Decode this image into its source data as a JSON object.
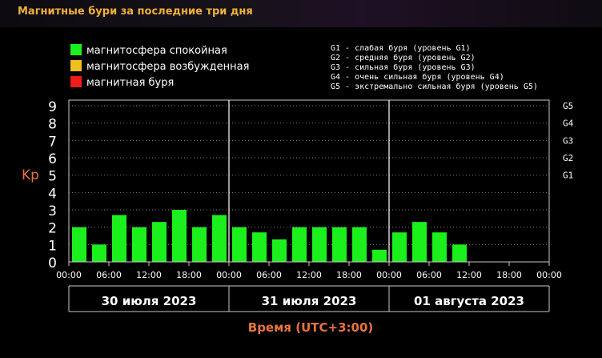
{
  "title": "Магнитные бури за последние три дня",
  "legend": [
    {
      "label": "магнитосфера спокойная",
      "color": "#1cf01c"
    },
    {
      "label": "магнитосфера возбужденная",
      "color": "#f0c01c"
    },
    {
      "label": "магнитная буря",
      "color": "#f01c1c"
    }
  ],
  "g_legend": [
    "G1 - слабая буря (уровень G1)",
    "G2 - средняя буря (уровень G2)",
    "G3 - сильная буря (уровень G3)",
    "G4 - очень сильная буря (уровень G4)",
    "G5 - экстремально сильная буря (уровень G5)"
  ],
  "chart_data": {
    "type": "bar",
    "ylabel": "Kp",
    "ylim": [
      0,
      9
    ],
    "yticks": [
      "0",
      "1",
      "2",
      "3",
      "4",
      "5",
      "6",
      "7",
      "8",
      "9"
    ],
    "g_levels": [
      {
        "label": "G1",
        "value": 5
      },
      {
        "label": "G2",
        "value": 6
      },
      {
        "label": "G3",
        "value": 7
      },
      {
        "label": "G4",
        "value": 8
      },
      {
        "label": "G5",
        "value": 9
      }
    ],
    "xticks": [
      "00:00",
      "06:00",
      "12:00",
      "18:00",
      "00:00",
      "06:00",
      "12:00",
      "18:00",
      "00:00",
      "06:00",
      "12:00",
      "18:00",
      "00:00"
    ],
    "days": [
      "30 июля 2023",
      "31 июля 2023",
      "01 августа 2023"
    ],
    "xlabel": "Время (UTC+3:00)",
    "bar_color": "#1cf01c",
    "values": [
      2.0,
      1.0,
      2.7,
      2.0,
      2.3,
      3.0,
      2.0,
      2.7,
      2.0,
      1.7,
      1.3,
      2.0,
      2.0,
      2.0,
      2.0,
      0.7,
      1.7,
      2.3,
      1.7,
      1.0,
      null,
      null,
      null,
      null
    ],
    "grid": true
  }
}
